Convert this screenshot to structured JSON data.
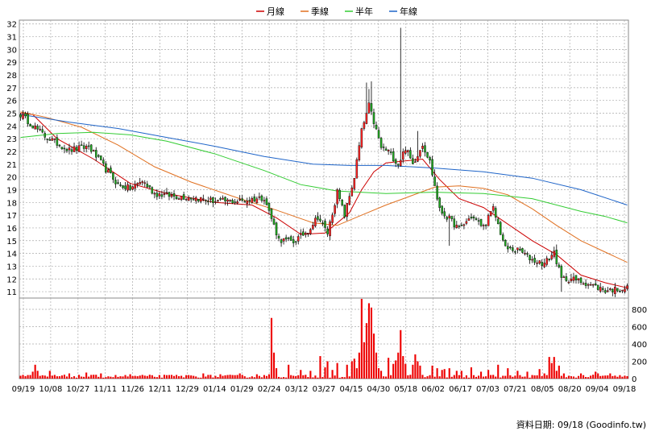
{
  "chart_data": [
    {
      "type": "candlestick",
      "title": "",
      "legend": {
        "placement": "top-center",
        "entries": [
          {
            "label": "月線",
            "color": "#cc0000"
          },
          {
            "label": "季線",
            "color": "#e07020"
          },
          {
            "label": "半年",
            "color": "#33cc33"
          },
          {
            "label": "年線",
            "color": "#1e64c8"
          }
        ]
      },
      "y_axis": {
        "side": "left",
        "range": [
          10.5,
          32.3
        ],
        "ticks": [
          11,
          12,
          13,
          14,
          15,
          16,
          17,
          18,
          19,
          20,
          21,
          22,
          23,
          24,
          25,
          26,
          27,
          28,
          29,
          30,
          31,
          32
        ]
      },
      "grid": true,
      "up_color": "#ff2222",
      "down_color": "#22aa22",
      "num_days": 250,
      "price_path": [
        [
          0,
          24.9
        ],
        [
          10,
          23.2
        ],
        [
          20,
          22.1
        ],
        [
          28,
          22.4
        ],
        [
          35,
          20.6
        ],
        [
          40,
          19.4
        ],
        [
          45,
          19.1
        ],
        [
          50,
          19.7
        ],
        [
          55,
          18.7
        ],
        [
          63,
          18.5
        ],
        [
          70,
          18.4
        ],
        [
          80,
          18.1
        ],
        [
          90,
          18.1
        ],
        [
          100,
          18.4
        ],
        [
          106,
          15.1
        ],
        [
          112,
          14.9
        ],
        [
          118,
          15.8
        ],
        [
          122,
          16.9
        ],
        [
          126,
          15.6
        ],
        [
          130,
          18.8
        ],
        [
          133,
          17.0
        ],
        [
          137,
          20.0
        ],
        [
          140,
          23.6
        ],
        [
          143,
          25.6
        ],
        [
          145,
          24.3
        ],
        [
          148,
          22.3
        ],
        [
          151,
          22.0
        ],
        [
          155,
          21.0
        ],
        [
          158,
          22.3
        ],
        [
          161,
          21.0
        ],
        [
          165,
          22.6
        ],
        [
          168,
          21.2
        ],
        [
          172,
          17.4
        ],
        [
          176,
          16.7
        ],
        [
          180,
          15.9
        ],
        [
          185,
          16.9
        ],
        [
          190,
          16.1
        ],
        [
          194,
          17.5
        ],
        [
          199,
          14.4
        ],
        [
          205,
          14.2
        ],
        [
          210,
          13.5
        ],
        [
          215,
          13.2
        ],
        [
          219,
          14.1
        ],
        [
          222,
          12.0
        ],
        [
          226,
          12.0
        ],
        [
          232,
          11.7
        ],
        [
          240,
          11.1
        ],
        [
          249,
          11.3
        ]
      ],
      "spikes": [
        [
          142,
          27.4
        ],
        [
          143,
          26.9
        ],
        [
          144,
          27.5
        ],
        [
          146,
          24.0
        ],
        [
          156,
          31.7
        ],
        [
          163,
          23.6
        ],
        [
          170,
          20.6
        ],
        [
          176,
          14.6
        ],
        [
          182,
          15.9
        ],
        [
          207,
          14.3
        ],
        [
          220,
          14.7
        ],
        [
          222,
          11.0
        ],
        [
          226,
          12.4
        ],
        [
          240,
          11.0
        ]
      ],
      "moving_averages": [
        {
          "name": "月線",
          "color": "#cc0000",
          "points": [
            [
              0,
              25.0
            ],
            [
              5,
              24.9
            ],
            [
              15,
              23.0
            ],
            [
              30,
              21.4
            ],
            [
              45,
              19.5
            ],
            [
              60,
              18.7
            ],
            [
              80,
              18.0
            ],
            [
              95,
              17.8
            ],
            [
              105,
              16.8
            ],
            [
              115,
              15.5
            ],
            [
              125,
              15.6
            ],
            [
              135,
              17.2
            ],
            [
              140,
              19.0
            ],
            [
              145,
              20.4
            ],
            [
              150,
              21.1
            ],
            [
              165,
              21.4
            ],
            [
              172,
              19.8
            ],
            [
              180,
              18.3
            ],
            [
              190,
              17.6
            ],
            [
              200,
              16.3
            ],
            [
              210,
              15.0
            ],
            [
              220,
              13.9
            ],
            [
              230,
              12.3
            ],
            [
              240,
              11.7
            ],
            [
              249,
              11.3
            ]
          ]
        },
        {
          "name": "季線",
          "color": "#e07020",
          "points": [
            [
              0,
              25.1
            ],
            [
              10,
              24.7
            ],
            [
              25,
              23.9
            ],
            [
              40,
              22.5
            ],
            [
              55,
              20.8
            ],
            [
              70,
              19.6
            ],
            [
              90,
              18.3
            ],
            [
              105,
              17.4
            ],
            [
              120,
              16.4
            ],
            [
              130,
              16.2
            ],
            [
              140,
              17.0
            ],
            [
              150,
              17.8
            ],
            [
              160,
              18.5
            ],
            [
              170,
              19.2
            ],
            [
              180,
              19.3
            ],
            [
              190,
              19.1
            ],
            [
              200,
              18.6
            ],
            [
              210,
              17.5
            ],
            [
              220,
              16.2
            ],
            [
              230,
              15.0
            ],
            [
              240,
              14.1
            ],
            [
              249,
              13.3
            ]
          ]
        },
        {
          "name": "半年",
          "color": "#33cc33",
          "points": [
            [
              0,
              23.1
            ],
            [
              15,
              23.4
            ],
            [
              30,
              23.5
            ],
            [
              45,
              23.3
            ],
            [
              60,
              22.8
            ],
            [
              80,
              21.8
            ],
            [
              100,
              20.5
            ],
            [
              115,
              19.4
            ],
            [
              130,
              18.9
            ],
            [
              150,
              18.7
            ],
            [
              170,
              18.8
            ],
            [
              190,
              18.7
            ],
            [
              210,
              18.3
            ],
            [
              230,
              17.3
            ],
            [
              240,
              16.9
            ],
            [
              249,
              16.4
            ]
          ]
        },
        {
          "name": "年線",
          "color": "#1e64c8",
          "points": [
            [
              0,
              24.9
            ],
            [
              20,
              24.3
            ],
            [
              40,
              23.8
            ],
            [
              60,
              23.1
            ],
            [
              80,
              22.4
            ],
            [
              100,
              21.6
            ],
            [
              120,
              21.0
            ],
            [
              135,
              20.9
            ],
            [
              150,
              20.9
            ],
            [
              170,
              20.7
            ],
            [
              190,
              20.4
            ],
            [
              210,
              19.9
            ],
            [
              230,
              19.0
            ],
            [
              249,
              17.8
            ]
          ]
        }
      ]
    },
    {
      "type": "bar",
      "title": "",
      "y_axis": {
        "side": "right",
        "range": [
          0,
          930
        ],
        "ticks": [
          0,
          200,
          400,
          600,
          800
        ]
      },
      "bar_color": "#ee0000",
      "base_volume": 25,
      "volume_spikes": [
        [
          5,
          80
        ],
        [
          6,
          160
        ],
        [
          7,
          90
        ],
        [
          12,
          90
        ],
        [
          20,
          60
        ],
        [
          27,
          70
        ],
        [
          33,
          60
        ],
        [
          45,
          50
        ],
        [
          52,
          30
        ],
        [
          60,
          40
        ],
        [
          68,
          40
        ],
        [
          75,
          60
        ],
        [
          82,
          50
        ],
        [
          90,
          60
        ],
        [
          97,
          50
        ],
        [
          102,
          50
        ],
        [
          103,
          700
        ],
        [
          104,
          300
        ],
        [
          105,
          120
        ],
        [
          110,
          160
        ],
        [
          115,
          100
        ],
        [
          119,
          90
        ],
        [
          123,
          260
        ],
        [
          125,
          130
        ],
        [
          126,
          200
        ],
        [
          128,
          100
        ],
        [
          130,
          180
        ],
        [
          134,
          160
        ],
        [
          136,
          200
        ],
        [
          137,
          230
        ],
        [
          138,
          120
        ],
        [
          139,
          300
        ],
        [
          140,
          950
        ],
        [
          141,
          420
        ],
        [
          142,
          640
        ],
        [
          143,
          870
        ],
        [
          144,
          820
        ],
        [
          145,
          520
        ],
        [
          146,
          300
        ],
        [
          147,
          120
        ],
        [
          148,
          90
        ],
        [
          151,
          240
        ],
        [
          153,
          170
        ],
        [
          154,
          210
        ],
        [
          155,
          300
        ],
        [
          156,
          560
        ],
        [
          157,
          260
        ],
        [
          158,
          170
        ],
        [
          161,
          160
        ],
        [
          162,
          280
        ],
        [
          163,
          200
        ],
        [
          164,
          150
        ],
        [
          169,
          150
        ],
        [
          171,
          120
        ],
        [
          173,
          100
        ],
        [
          174,
          110
        ],
        [
          176,
          120
        ],
        [
          179,
          90
        ],
        [
          181,
          90
        ],
        [
          185,
          130
        ],
        [
          189,
          80
        ],
        [
          192,
          100
        ],
        [
          196,
          160
        ],
        [
          200,
          120
        ],
        [
          204,
          90
        ],
        [
          208,
          80
        ],
        [
          213,
          110
        ],
        [
          215,
          60
        ],
        [
          217,
          250
        ],
        [
          218,
          180
        ],
        [
          219,
          250
        ],
        [
          220,
          90
        ],
        [
          221,
          150
        ],
        [
          223,
          60
        ],
        [
          230,
          60
        ],
        [
          236,
          80
        ],
        [
          237,
          60
        ],
        [
          242,
          60
        ],
        [
          246,
          40
        ]
      ]
    }
  ],
  "x_axis": {
    "labels": [
      "09/19",
      "10/08",
      "10/27",
      "11/11",
      "11/26",
      "12/11",
      "12/29",
      "01/14",
      "01/29",
      "02/24",
      "03/12",
      "03/27",
      "04/15",
      "04/30",
      "05/18",
      "06/02",
      "06/17",
      "07/03",
      "07/21",
      "08/05",
      "08/20",
      "09/04",
      "09/18"
    ]
  },
  "footer": {
    "source": "資料日期: 09/18 (Goodinfo.tw)"
  }
}
